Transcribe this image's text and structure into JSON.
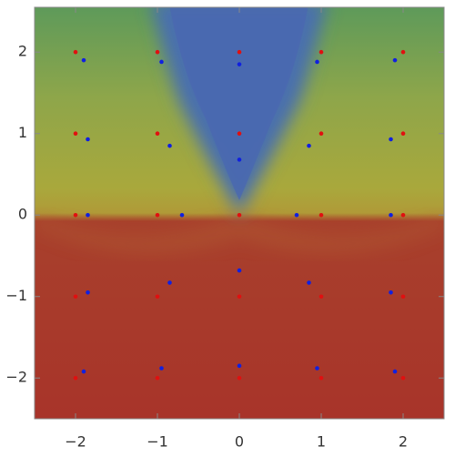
{
  "chart_data": {
    "type": "scatter",
    "xlim": [
      -2.5,
      2.5
    ],
    "ylim": [
      -2.5,
      2.55
    ],
    "xticks": [
      {
        "value": -2,
        "label": "−2"
      },
      {
        "value": -1,
        "label": "−1"
      },
      0,
      1,
      2
    ],
    "yticks": [
      {
        "value": -2,
        "label": "−2"
      },
      {
        "value": -1,
        "label": "−1"
      },
      0,
      1,
      2
    ],
    "series": [
      {
        "color": "#e01010",
        "x": [
          -2,
          -1,
          0,
          1,
          2,
          -2,
          -1,
          0,
          1,
          2,
          -2,
          -1,
          0,
          1,
          2,
          -2,
          -1,
          0,
          1,
          2,
          -2,
          -1,
          0,
          1,
          2
        ],
        "y": [
          2,
          2,
          2,
          2,
          2,
          1,
          1,
          1,
          1,
          1,
          0,
          0,
          0,
          0,
          0,
          -1,
          -1,
          -1,
          -1,
          -1,
          -2,
          -2,
          -2,
          -2,
          -2
        ]
      },
      {
        "color": "#1020e0",
        "x": [
          -1.9,
          -0.95,
          0,
          0.95,
          1.9,
          -1.85,
          -0.85,
          0,
          0.85,
          1.85,
          -1.85,
          -0.7,
          0.7,
          1.85,
          -1.85,
          -0.85,
          0,
          0.85,
          1.85,
          -1.9,
          -0.95,
          0,
          0.95,
          1.9
        ],
        "y": [
          1.9,
          1.88,
          1.85,
          1.88,
          1.9,
          0.93,
          0.85,
          0.68,
          0.85,
          0.93,
          0,
          0,
          0,
          0,
          -0.95,
          -0.83,
          -0.68,
          -0.83,
          -0.95,
          -1.92,
          -1.88,
          -1.85,
          -1.88,
          -1.92
        ]
      }
    ]
  }
}
